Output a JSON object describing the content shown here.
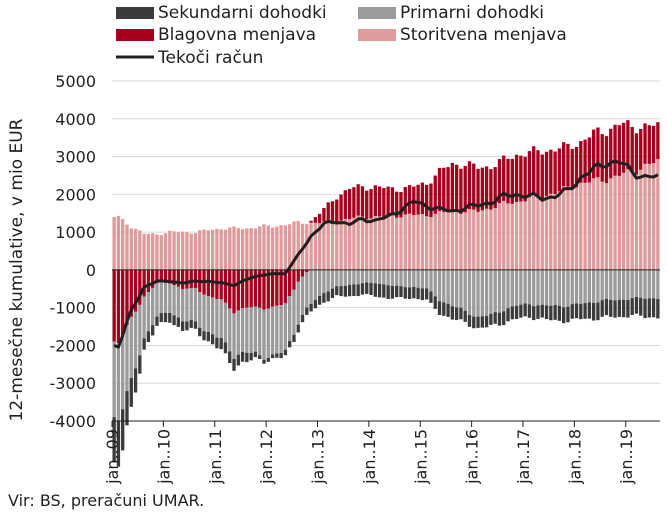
{
  "chart_data": {
    "type": "bar",
    "subtype": "stacked bar with line overlay",
    "ylabel": "12-mesečne kumulative, v mio EUR",
    "ylim": [
      -4000,
      5000
    ],
    "yticks": [
      5000,
      4000,
      3000,
      2000,
      1000,
      0,
      -1000,
      -2000,
      -3000,
      -4000
    ],
    "ytick_labels": [
      "5000",
      "4000",
      "3000",
      "2000",
      "1000",
      "0",
      "-1000",
      "-2000",
      "-3000",
      "-4000"
    ],
    "grid": true,
    "legend_position": "top",
    "x_start": "2009-01",
    "x_end": "2019-08",
    "xtick_labels": [
      "jan..09",
      "jan..10",
      "jan..11",
      "jan..12",
      "jan..13",
      "jan..14",
      "jan..15",
      "jan..16",
      "jan..17",
      "jan..18",
      "jan..19"
    ],
    "quarters": [
      "2009-Q1",
      "2009-Q2",
      "2009-Q3",
      "2009-Q4",
      "2010-Q1",
      "2010-Q2",
      "2010-Q3",
      "2010-Q4",
      "2011-Q1",
      "2011-Q2",
      "2011-Q3",
      "2011-Q4",
      "2012-Q1",
      "2012-Q2",
      "2012-Q3",
      "2012-Q4",
      "2013-Q1",
      "2013-Q2",
      "2013-Q3",
      "2013-Q4",
      "2014-Q1",
      "2014-Q2",
      "2014-Q3",
      "2014-Q4",
      "2015-Q1",
      "2015-Q2",
      "2015-Q3",
      "2015-Q4",
      "2016-Q1",
      "2016-Q2",
      "2016-Q3",
      "2016-Q4",
      "2017-Q1",
      "2017-Q2",
      "2017-Q3",
      "2017-Q4",
      "2018-Q1",
      "2018-Q2",
      "2018-Q3",
      "2018-Q4",
      "2019-Q1",
      "2019-Q2",
      "2019-Q3"
    ],
    "series": [
      {
        "name": "Sekundarni dohodki",
        "color": "#3b3b3b",
        "values": [
          -1200,
          -800,
          -300,
          -250,
          -250,
          -250,
          -200,
          -250,
          -300,
          -300,
          -250,
          -100,
          -100,
          -150,
          -200,
          -200,
          -250,
          -250,
          -300,
          -300,
          -350,
          -350,
          -300,
          -300,
          -300,
          -350,
          -350,
          -300,
          -300,
          -300,
          -350,
          -350,
          -350,
          -350,
          -400,
          -400,
          -400,
          -450,
          -450,
          -450,
          -450,
          -500,
          -500
        ]
      },
      {
        "name": "Primarni dohodki",
        "color": "#9b9b9b",
        "values": [
          -2000,
          -1700,
          -1100,
          -900,
          -750,
          -850,
          -900,
          -950,
          -1050,
          -1150,
          -1200,
          -1250,
          -1300,
          -1250,
          -1100,
          -900,
          -600,
          -450,
          -400,
          -350,
          -350,
          -400,
          -450,
          -450,
          -500,
          -800,
          -950,
          -1100,
          -1250,
          -1200,
          -1050,
          -950,
          -900,
          -950,
          -950,
          -950,
          -900,
          -850,
          -800,
          -800,
          -750,
          -750,
          -750
        ]
      },
      {
        "name": "Blagovna menjava",
        "color": "#a5001e",
        "values": [
          -1900,
          -1300,
          -700,
          -350,
          -350,
          -500,
          -500,
          -700,
          -800,
          -1100,
          -1000,
          -1000,
          -1000,
          -900,
          -300,
          50,
          350,
          650,
          800,
          800,
          800,
          750,
          700,
          750,
          850,
          1100,
          1250,
          1250,
          1150,
          1100,
          1150,
          1250,
          1200,
          1200,
          1150,
          1100,
          1100,
          1250,
          1300,
          1350,
          1200,
          1050,
          950
        ]
      },
      {
        "name": "Storitvena menjava",
        "color": "#de9b9b",
        "values": [
          1400,
          1150,
          950,
          950,
          1000,
          1000,
          1000,
          1050,
          1100,
          1100,
          1100,
          1150,
          1150,
          1200,
          1250,
          1250,
          1250,
          1300,
          1350,
          1400,
          1400,
          1400,
          1450,
          1450,
          1450,
          1500,
          1550,
          1550,
          1550,
          1650,
          1750,
          1800,
          1900,
          1950,
          2050,
          2150,
          2300,
          2350,
          2400,
          2500,
          2600,
          2750,
          2850
        ]
      },
      {
        "name": "Tekoči račun",
        "type": "line",
        "color": "#231f20",
        "values": [
          -2000,
          -1100,
          -450,
          -300,
          -300,
          -350,
          -300,
          -300,
          -350,
          -400,
          -250,
          -150,
          -100,
          -100,
          400,
          900,
          1200,
          1300,
          1200,
          1350,
          1300,
          1400,
          1600,
          1800,
          1700,
          1600,
          1550,
          1650,
          1700,
          1800,
          1950,
          2000,
          1950,
          1900,
          1950,
          2100,
          2450,
          2650,
          2850,
          2850,
          2600,
          2450,
          2450
        ]
      }
    ]
  },
  "footer": {
    "source": "Vir: BS, preračuni UMAR."
  }
}
